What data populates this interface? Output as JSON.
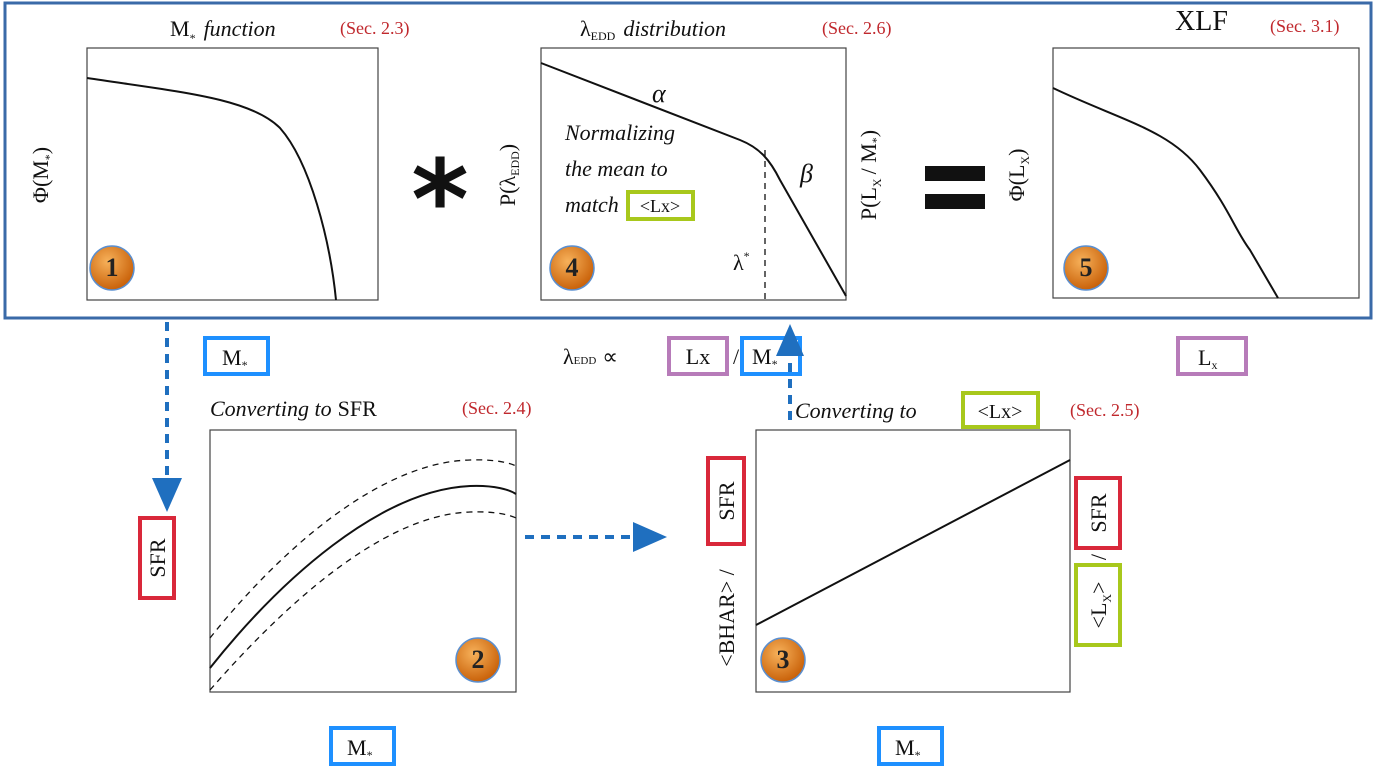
{
  "stage1": {
    "title_main": "M",
    "title_sub": "*",
    "title_rest": "function",
    "section": "(Sec. 2.3)",
    "ylabel_pre": "Φ(M",
    "ylabel_sub": "*",
    "ylabel_post": ")",
    "badge": "1"
  },
  "operator_multiply": "*",
  "stage4": {
    "title_main": "λ",
    "title_sub": "EDD",
    "title_rest": "distribution",
    "section": "(Sec. 2.6)",
    "ylabel_pre": "P(λ",
    "ylabel_sub": "EDD",
    "ylabel_post": ")",
    "alpha": "α",
    "beta": "β",
    "note": [
      "Normalizing",
      "the mean to",
      "match"
    ],
    "note_box": "<Lx>",
    "break_main": "λ",
    "break_sup": "*",
    "badge": "4"
  },
  "conditional_ylabel": {
    "pre": "P(L",
    "sub": "X",
    "mid": "/ M",
    "sub2": "*",
    "post": ")"
  },
  "stage5": {
    "title": "XLF",
    "section": "(Sec. 3.1)",
    "ylabel_pre": "Φ(L",
    "ylabel_sub": "X",
    "ylabel_post": ")",
    "badge": "5"
  },
  "boxes": {
    "mass_top": {
      "main": "M",
      "sub": "*"
    },
    "eddington": {
      "lambda": "λ",
      "sub": "EDD",
      "propto": "∝",
      "lx": "Lx",
      "slash": "/",
      "mass_main": "M",
      "mass_sub": "*"
    },
    "lx_top": {
      "main": "L",
      "sub": "x"
    }
  },
  "stage2": {
    "title_pre": "Converting to",
    "title_post": "SFR",
    "section": "(Sec. 2.4)",
    "ylabel": "SFR",
    "xlabel_main": "M",
    "xlabel_sub": "*",
    "badge": "2"
  },
  "stage3": {
    "title_pre": "Converting to",
    "title_box": "<Lx>",
    "section": "(Sec. 2.5)",
    "ylabel_pre": "<BHAR> /",
    "ylabel_box": "SFR",
    "right_top": "SFR",
    "right_slash": "/",
    "right_bottom_main": "<L",
    "right_bottom_sub": "X",
    "right_bottom_post": ">",
    "xlabel_main": "M",
    "xlabel_sub": "*",
    "badge": "3"
  }
}
